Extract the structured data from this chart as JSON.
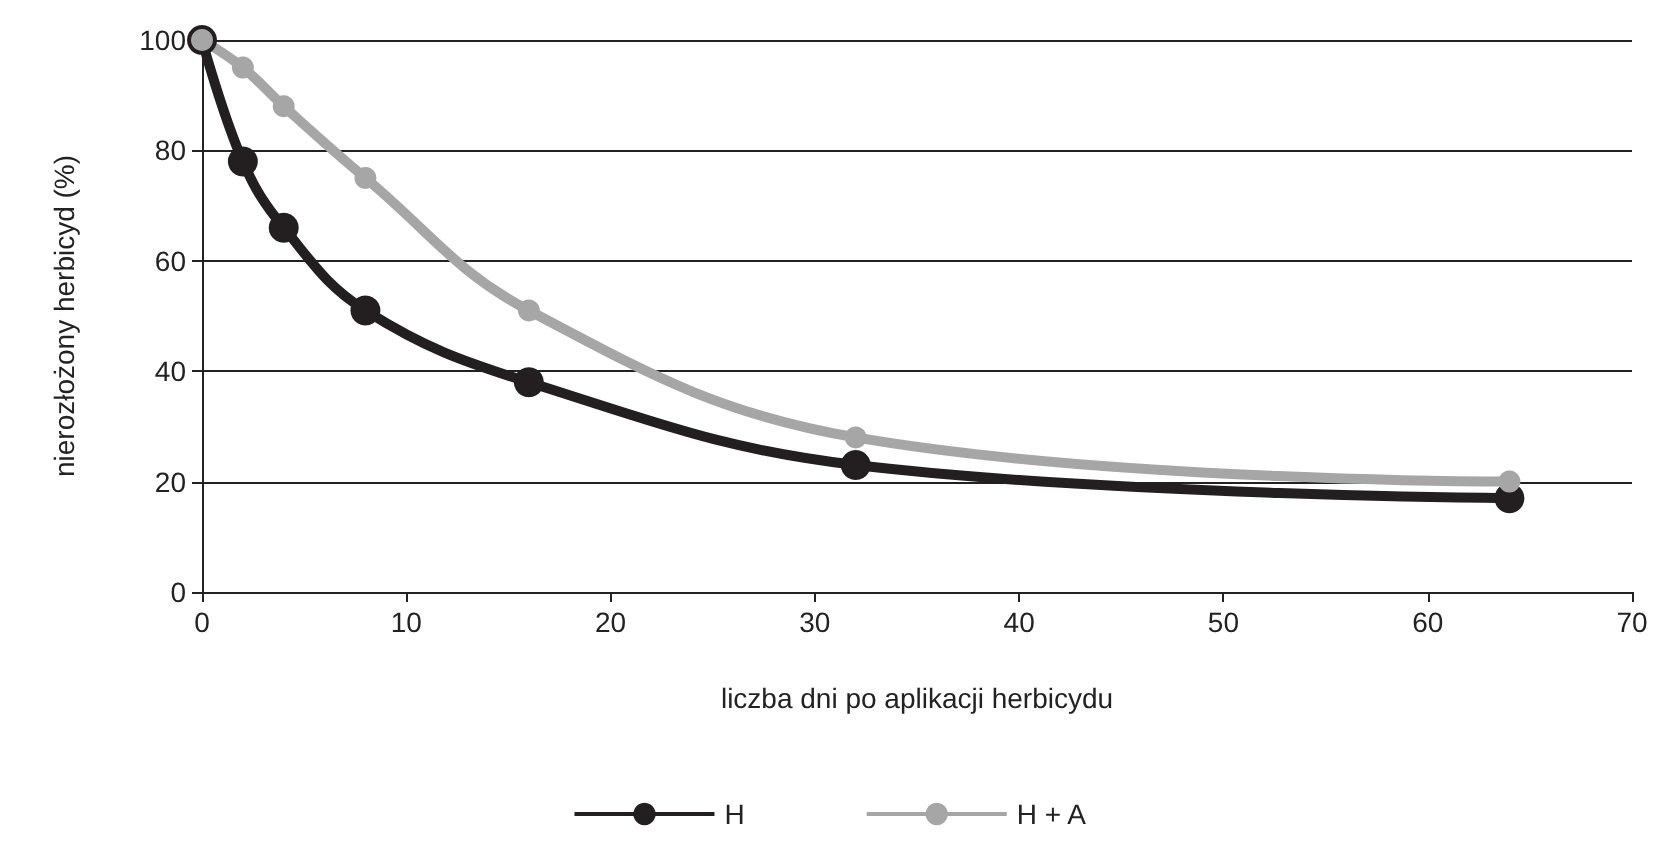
{
  "chart_data": {
    "type": "line",
    "xlabel": "liczba dni po aplikacji herbicydu",
    "ylabel": "nierozłożony herbicyd (%)",
    "x": [
      0,
      2,
      4,
      8,
      16,
      32,
      64
    ],
    "series": [
      {
        "name": "H",
        "color": "#231f20",
        "values": [
          100,
          78,
          66,
          51,
          38,
          23,
          17
        ]
      },
      {
        "name": "H + A",
        "color": "#a6a6a6",
        "values": [
          100,
          95,
          88,
          75,
          51,
          28,
          20
        ]
      }
    ],
    "xlim": [
      0,
      70
    ],
    "xticks": [
      0,
      10,
      20,
      30,
      40,
      50,
      60,
      70
    ],
    "ylim": [
      0,
      100
    ],
    "yticks": [
      0,
      20,
      40,
      60,
      80,
      100
    ],
    "grid": "y",
    "legend": "bottom",
    "marker": "circle",
    "line_style": "solid"
  }
}
